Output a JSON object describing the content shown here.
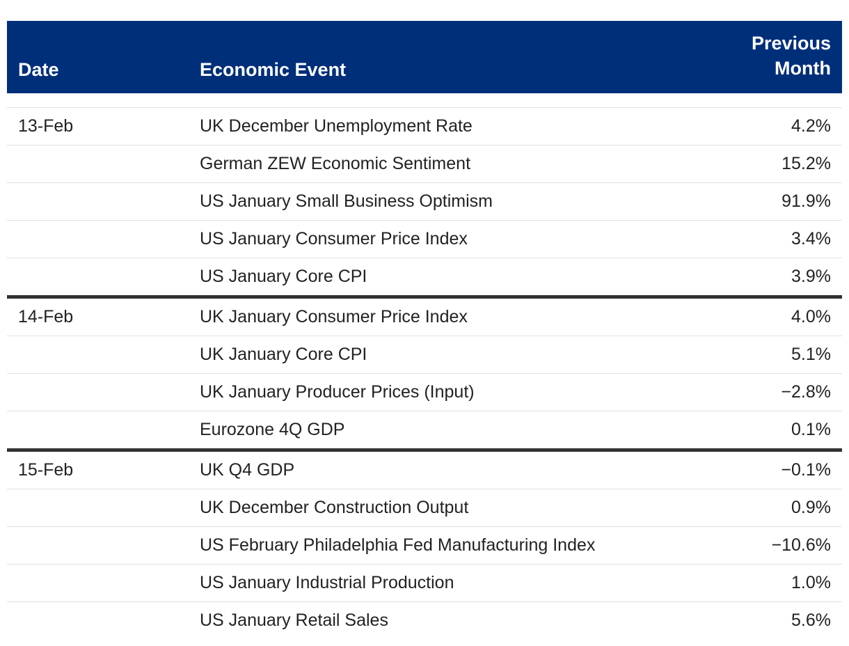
{
  "table": {
    "headers": {
      "date": "Date",
      "event": "Economic Event",
      "previous_line1": "Previous",
      "previous_line2": "Month"
    },
    "groups": [
      {
        "date": "13-Feb",
        "rows": [
          {
            "event": "UK December Unemployment Rate",
            "value": "4.2%"
          },
          {
            "event": "German ZEW Economic Sentiment",
            "value": "15.2%"
          },
          {
            "event": "US January Small Business Optimism",
            "value": "91.9%"
          },
          {
            "event": "US January Consumer Price Index",
            "value": "3.4%"
          },
          {
            "event": "US January Core CPI",
            "value": "3.9%"
          }
        ]
      },
      {
        "date": "14-Feb",
        "rows": [
          {
            "event": "UK January Consumer Price Index",
            "value": "4.0%"
          },
          {
            "event": "UK January Core CPI",
            "value": "5.1%"
          },
          {
            "event": "UK January Producer Prices (Input)",
            "value": "−2.8%"
          },
          {
            "event": "Eurozone 4Q GDP",
            "value": "0.1%"
          }
        ]
      },
      {
        "date": "15-Feb",
        "rows": [
          {
            "event": "UK Q4 GDP",
            "value": "−0.1%"
          },
          {
            "event": "UK December Construction Output",
            "value": "0.9%"
          },
          {
            "event": "US February Philadelphia Fed Manufacturing Index",
            "value": "−10.6%"
          },
          {
            "event": "US January Industrial Production",
            "value": "1.0%"
          },
          {
            "event": "US January Retail Sales",
            "value": "5.6%"
          }
        ]
      }
    ]
  },
  "colors": {
    "header_bg": "#002F7A",
    "header_text": "#FFFFFF",
    "group_separator": "#333333",
    "row_divider": "#E2E2E2"
  }
}
